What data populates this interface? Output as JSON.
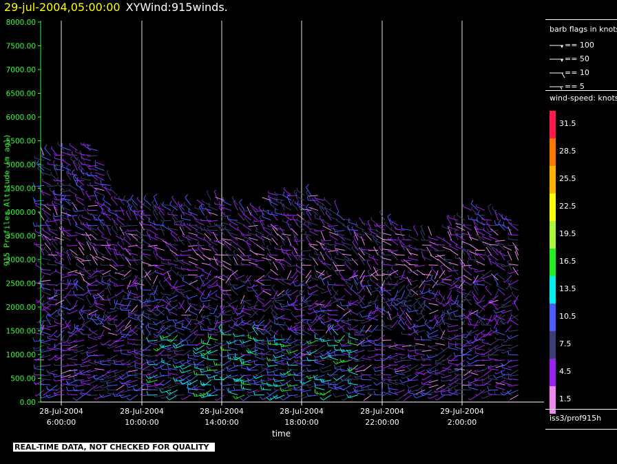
{
  "header": {
    "timestamp": "29-jul-2004,05:00:00",
    "title": "XYWind:915winds."
  },
  "footer": {
    "notice": "REAL-TIME DATA, NOT CHECKED FOR QUALITY"
  },
  "legend": {
    "barb_title": "barb flags in knots",
    "barbs": [
      {
        "label": "== 100",
        "type": "flag"
      },
      {
        "label": "== 50",
        "type": "flag"
      },
      {
        "label": "== 10",
        "type": "full"
      },
      {
        "label": "== 5",
        "type": "half"
      }
    ],
    "speed_title": "wind-speed: knots",
    "speed_bins": [
      {
        "label": "31.5",
        "color": "#ff1a4a"
      },
      {
        "label": "28.5",
        "color": "#ff7700"
      },
      {
        "label": "25.5",
        "color": "#ffb000"
      },
      {
        "label": "22.5",
        "color": "#ffff00"
      },
      {
        "label": "19.5",
        "color": "#a8f53a"
      },
      {
        "label": "16.5",
        "color": "#22ee22"
      },
      {
        "label": "13.5",
        "color": "#00f0f0"
      },
      {
        "label": "10.5",
        "color": "#4b5bff"
      },
      {
        "label": "7.5",
        "color": "#3c3c72"
      },
      {
        "label": "4.5",
        "color": "#9a22f0"
      },
      {
        "label": "1.5",
        "color": "#ee88ee"
      }
    ],
    "source": "iss3/prof915h"
  },
  "chart_data": {
    "type": "scatter",
    "subtype": "wind-barb time-height",
    "ylabel": "915 Profiler Altitude (m agl)",
    "xlabel": "time",
    "ylim": [
      0,
      8000
    ],
    "yticks": [
      "0.00",
      "500.00",
      "1000.00",
      "1500.00",
      "2000.00",
      "2500.00",
      "3000.00",
      "3500.00",
      "4000.00",
      "4500.00",
      "5000.00",
      "5500.00",
      "6000.00",
      "6500.00",
      "7000.00",
      "7500.00",
      "8000.00"
    ],
    "xticks": [
      {
        "date": "28-Jul-2004",
        "time": "6:00:00"
      },
      {
        "date": "28-Jul-2004",
        "time": "10:00:00"
      },
      {
        "date": "28-Jul-2004",
        "time": "14:00:00"
      },
      {
        "date": "28-Jul-2004",
        "time": "18:00:00"
      },
      {
        "date": "28-Jul-2004",
        "time": "22:00:00"
      },
      {
        "date": "29-Jul-2004",
        "time": "2:00:00"
      }
    ],
    "grid": "vertical lines at x ticks",
    "series": [
      {
        "coverage": "28-Jul-2004 04:00 to 29-Jul-2004 05:00",
        "vertical_extent_m": [
          150,
          5500
        ],
        "dominant_speed_knots": "4.5-13.5, up to ~16.5-19.5 near surface at 12:00-18:00"
      }
    ]
  }
}
